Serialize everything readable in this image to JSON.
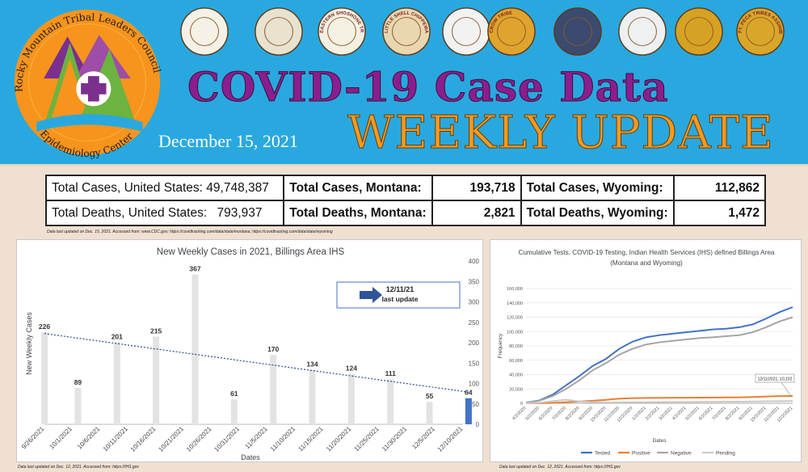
{
  "header": {
    "logo_text_top": "Rocky Mountain Tribal Leaders Council",
    "logo_text_bottom": "Epidemiology Center",
    "title_line1": "COVID-19 Case Data",
    "title_line2": "WEEKLY UPDATE",
    "date": "December 15, 2021",
    "seal_colors": [
      "#f6f1e6",
      "#e8e2cf",
      "#f4f0e2",
      "#ead7b0",
      "#f2f2f2",
      "#e0a32d",
      "#3b4a6e",
      "#eef0f2",
      "#d6a223",
      "#d9a62a"
    ],
    "seal_labels": [
      "",
      "",
      "EASTERN SHOSHONE TRIBE",
      "LITTLE SHELL CHIPPEWA TRIBE",
      "",
      "CROW TRIBE",
      "",
      "",
      "",
      "FT. PECK TRIBES ASSINIBOINE SIOUX"
    ]
  },
  "stats": {
    "rows": [
      {
        "us_label": "Total Cases, United States:",
        "us_value": "49,748,387",
        "mt_label": "Total Cases, Montana:",
        "mt_value": "193,718",
        "wy_label": "Total Cases, Wyoming:",
        "wy_value": "112,862"
      },
      {
        "us_label": "Total Deaths, United States:",
        "us_value": "793,937",
        "mt_label": "Total Deaths, Montana:",
        "mt_value": "2,821",
        "wy_label": "Total Deaths, Wyoming:",
        "wy_value": "1,472"
      }
    ],
    "source": "Data last updated on Dec. 15, 2021. Accessed from: www.CDC.gov; https://covidtracking.com/data/state/montana; https://covidtracking.com/data/state/wyoming"
  },
  "chart_data": [
    {
      "type": "bar",
      "title": "New Weekly Cases in 2021, Billings Area IHS",
      "xlabel": "Dates",
      "ylabel": "New Weekly Cases",
      "ylim": [
        0,
        400
      ],
      "yticks": [
        0,
        50,
        100,
        150,
        200,
        250,
        300,
        350,
        400
      ],
      "categories": [
        "9/26/2021",
        "10/1/2021",
        "10/6/2021",
        "10/11/2021",
        "10/16/2021",
        "10/21/2021",
        "10/26/2021",
        "10/31/2021",
        "11/5/2021",
        "11/10/2021",
        "11/15/2021",
        "11/20/2021",
        "11/25/2021",
        "11/30/2021",
        "12/5/2021",
        "12/10/2021"
      ],
      "bars": [
        {
          "date": "9/26/2021",
          "value": 226
        },
        {
          "date": "10/2/2021",
          "value": 89
        },
        {
          "date": "10/9/2021",
          "value": 201
        },
        {
          "date": "10/16/2021",
          "value": 215
        },
        {
          "date": "10/23/2021",
          "value": 367
        },
        {
          "date": "10/30/2021",
          "value": 61
        },
        {
          "date": "11/6/2021",
          "value": 170
        },
        {
          "date": "11/13/2021",
          "value": 134
        },
        {
          "date": "11/20/2021",
          "value": 124
        },
        {
          "date": "11/27/2021",
          "value": 111
        },
        {
          "date": "12/4/2021",
          "value": 55
        },
        {
          "date": "12/11/2021",
          "value": 64,
          "highlight": true
        }
      ],
      "trendline": "linear",
      "annotation": {
        "line1": "12/11/21",
        "line2": "last update"
      },
      "colors": {
        "bar": "#e3e3e3",
        "highlight": "#4472c4",
        "trend": "#2e4a8e"
      },
      "source": "Data last updated on Dec. 12, 2021. Accessed from: https://IHS.gov"
    },
    {
      "type": "line",
      "title": "Cumulative Tests, COVID-19 Testing, Indian Health Services (IHS) defined Billings Area",
      "subtitle": "(Montana and Wyoming)",
      "xlabel": "Dates",
      "ylabel": "Frequency",
      "ylim": [
        0,
        160000
      ],
      "yticks": [
        "0",
        "20,000",
        "40,000",
        "60,000",
        "80,000",
        "100,000",
        "120,000",
        "140,000",
        "160,000"
      ],
      "categories": [
        "4/2/2020",
        "5/2/2020",
        "6/2/2020",
        "7/2/2020",
        "8/2/2020",
        "9/2/2020",
        "10/2/2020",
        "11/2/2020",
        "12/2/2020",
        "1/2/2021",
        "2/2/2021",
        "3/2/2021",
        "4/2/2021",
        "5/2/2021",
        "6/2/2021",
        "7/2/2021",
        "8/2/2021",
        "9/2/2021",
        "10/2/2021",
        "11/2/2021",
        "12/2/2021"
      ],
      "series": [
        {
          "name": "Tested",
          "color": "#4472c4",
          "values": [
            1000,
            4000,
            12000,
            25000,
            38000,
            52000,
            62000,
            76000,
            86000,
            92000,
            95000,
            97000,
            99000,
            101000,
            103000,
            104000,
            106000,
            110000,
            118000,
            127000,
            134000
          ]
        },
        {
          "name": "Positive",
          "color": "#ed7d31",
          "values": [
            100,
            200,
            600,
            1500,
            2500,
            3500,
            4800,
            6500,
            7200,
            7500,
            7600,
            7700,
            7800,
            7900,
            8000,
            8100,
            8300,
            8800,
            9400,
            10000,
            10102
          ]
        },
        {
          "name": "Negative",
          "color": "#a5a5a5",
          "values": [
            900,
            3600,
            10000,
            20000,
            32000,
            46000,
            56000,
            68000,
            76000,
            82000,
            85000,
            87000,
            89000,
            91000,
            92000,
            93500,
            95000,
            99000,
            106000,
            114000,
            120000
          ]
        },
        {
          "name": "Pending",
          "color": "#c9c9c9",
          "values": [
            200,
            800,
            3000,
            5000,
            2500,
            1500,
            1200,
            1300,
            1500,
            1600,
            1700,
            1800,
            1900,
            2000,
            2100,
            2200,
            2300,
            2500,
            2800,
            3000,
            3200
          ]
        }
      ],
      "annotation": "12/11/2021, 10,102",
      "source": "Data last updated on Dec. 12, 2021. Accessed from: https://IHS.gov"
    }
  ]
}
